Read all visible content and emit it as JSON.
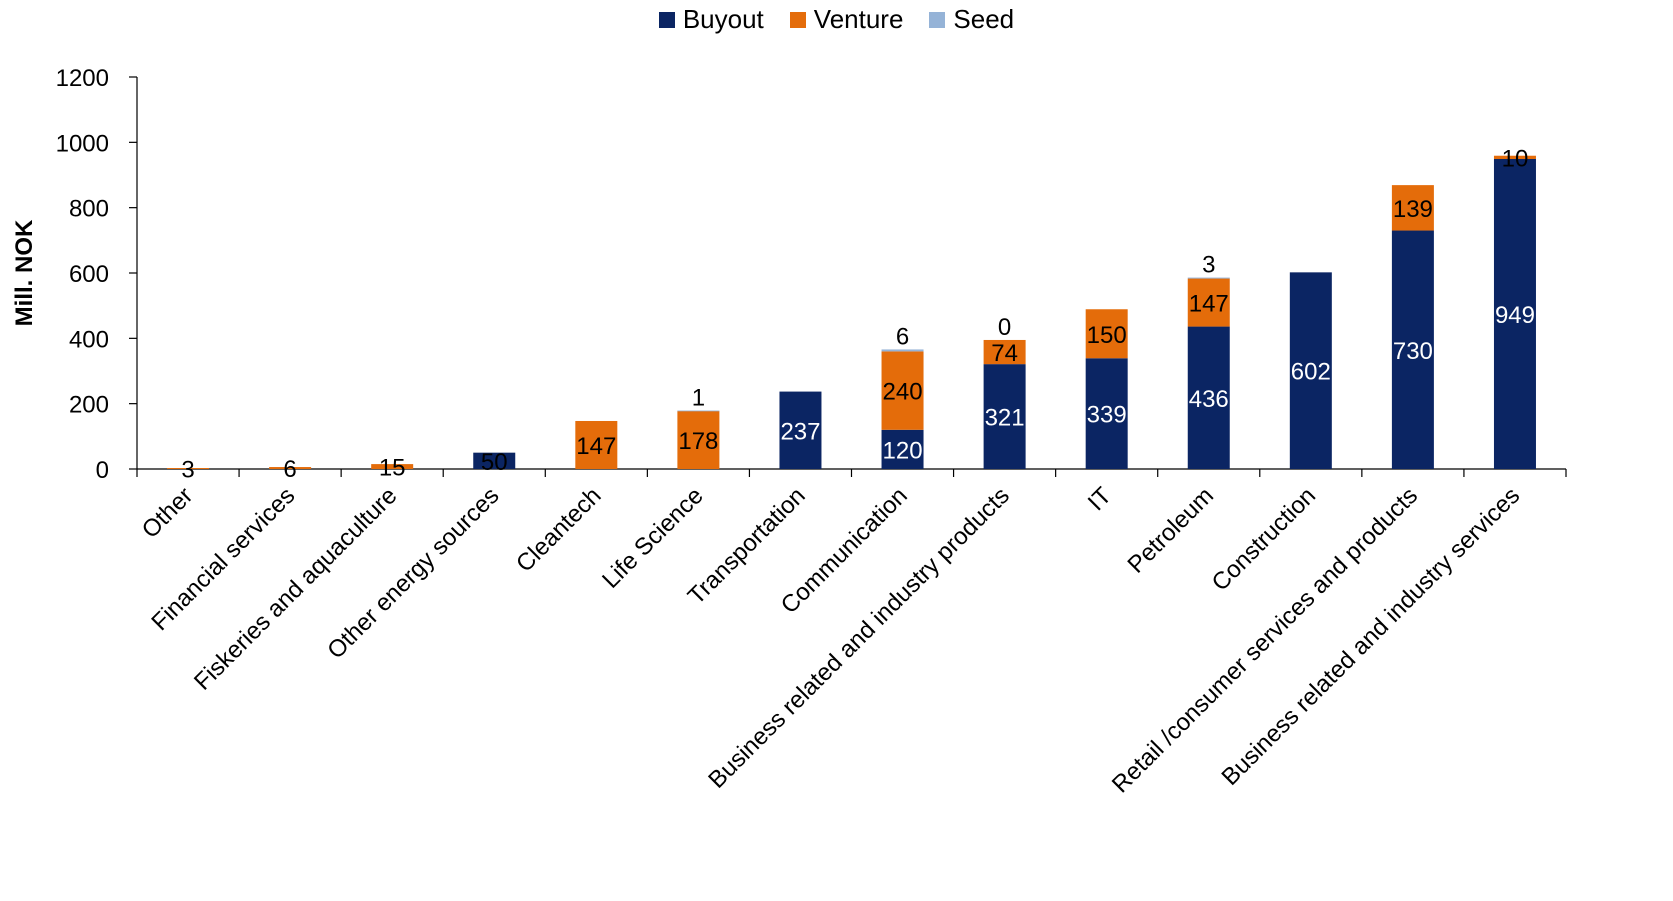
{
  "chart_data": {
    "type": "bar",
    "stacked": true,
    "categories": [
      "Other",
      "Financial services",
      "Fiskeries and aquaculture",
      "Other energy sources",
      "Cleantech",
      "Life Science",
      "Transportation",
      "Communication",
      "Business related and industry products",
      "IT",
      "Petroleum",
      "Construction",
      "Retail /consumer services and products",
      "Business related and industry services"
    ],
    "series": [
      {
        "name": "Buyout",
        "color": "#0b2563",
        "values": [
          0,
          0,
          0,
          50,
          0,
          0,
          237,
          120,
          321,
          339,
          436,
          602,
          730,
          949
        ]
      },
      {
        "name": "Venture",
        "color": "#e46c0a",
        "values": [
          3,
          6,
          15,
          0,
          147,
          178,
          0,
          240,
          74,
          150,
          147,
          0,
          139,
          10
        ]
      },
      {
        "name": "Seed",
        "color": "#95b3d7",
        "values": [
          0,
          0,
          0,
          0,
          0,
          1,
          0,
          6,
          0,
          0,
          3,
          0,
          0,
          0
        ]
      }
    ],
    "data_labels": [
      {
        "category": 0,
        "series": "Venture",
        "text": "3"
      },
      {
        "category": 1,
        "series": "Venture",
        "text": "6"
      },
      {
        "category": 2,
        "series": "Venture",
        "text": "15"
      },
      {
        "category": 3,
        "series": "Buyout",
        "text": "50"
      },
      {
        "category": 4,
        "series": "Venture",
        "text": "147"
      },
      {
        "category": 5,
        "series": "Venture",
        "text": "178"
      },
      {
        "category": 5,
        "series": "Seed",
        "text": "1"
      },
      {
        "category": 6,
        "series": "Buyout",
        "text": "237"
      },
      {
        "category": 7,
        "series": "Buyout",
        "text": "120"
      },
      {
        "category": 7,
        "series": "Venture",
        "text": "240"
      },
      {
        "category": 7,
        "series": "Seed",
        "text": "6"
      },
      {
        "category": 8,
        "series": "Buyout",
        "text": "321"
      },
      {
        "category": 8,
        "series": "Venture",
        "text": "74"
      },
      {
        "category": 8,
        "series": "Seed",
        "text": "0"
      },
      {
        "category": 9,
        "series": "Buyout",
        "text": "339"
      },
      {
        "category": 9,
        "series": "Venture",
        "text": "150"
      },
      {
        "category": 10,
        "series": "Buyout",
        "text": "436"
      },
      {
        "category": 10,
        "series": "Venture",
        "text": "147"
      },
      {
        "category": 10,
        "series": "Seed",
        "text": "3"
      },
      {
        "category": 11,
        "series": "Buyout",
        "text": "602"
      },
      {
        "category": 12,
        "series": "Buyout",
        "text": "730"
      },
      {
        "category": 12,
        "series": "Venture",
        "text": "139"
      },
      {
        "category": 13,
        "series": "Buyout",
        "text": "949"
      },
      {
        "category": 13,
        "series": "Venture",
        "text": "10"
      }
    ],
    "ylabel": "Mill. NOK",
    "xlabel": "",
    "ylim": [
      0,
      1200
    ],
    "yticks": [
      0,
      200,
      400,
      600,
      800,
      1000,
      1200
    ],
    "grid": false,
    "legend": "top-center"
  }
}
